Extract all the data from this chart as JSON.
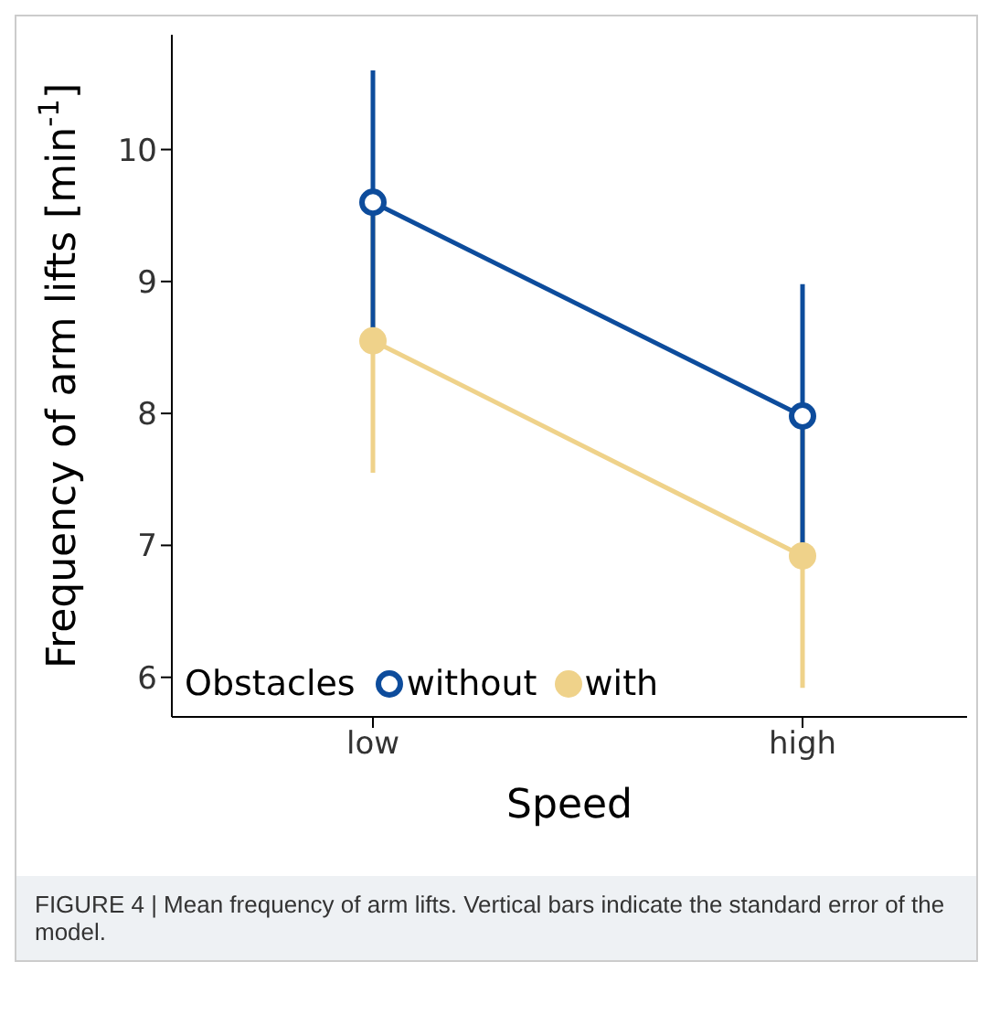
{
  "chart_data": {
    "type": "line",
    "xlabel": "Speed",
    "ylabel": "Frequency of arm lifts [min$^{-1}$]",
    "legend_title": "Obstacles",
    "categories": [
      "low",
      "high"
    ],
    "series": [
      {
        "name": "without",
        "color": "#0d4c9c",
        "values": [
          9.6,
          7.98
        ],
        "errors": [
          1.0,
          1.0
        ]
      },
      {
        "name": "with",
        "color": "#efd28a",
        "values": [
          8.55,
          6.92
        ],
        "errors": [
          1.0,
          1.0
        ]
      }
    ],
    "ylim": [
      5.7,
      10.87
    ],
    "yticks": [
      6,
      7,
      8,
      9,
      10
    ],
    "grid": false,
    "legend": "bottom left",
    "marker": "circle",
    "line_style": "solid",
    "annotations": [
      "FIGURE 4 | Mean frequency of arm lifts. Vertical bars indicate the standard error of the model."
    ]
  }
}
